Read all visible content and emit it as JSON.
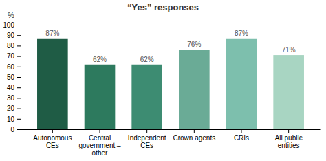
{
  "chart_data": {
    "type": "bar",
    "title": "“Yes” responses",
    "ylabel": "%",
    "categories": [
      "Autonomous\nCEs",
      "Central\ngovernment –\nother",
      "Independent\nCEs",
      "Crown agents",
      "CRIs",
      "All public\nentities"
    ],
    "values": [
      87,
      62,
      62,
      76,
      87,
      71
    ],
    "value_labels": [
      "87%",
      "62%",
      "62%",
      "76%",
      "87%",
      "71%"
    ],
    "data_labels": true,
    "colors": [
      "#1f5c45",
      "#2d7a5e",
      "#3d8c72",
      "#6aab96",
      "#7dbfad",
      "#a8d5c2"
    ],
    "ylim": [
      0,
      100
    ],
    "yticks": [
      0,
      10,
      20,
      30,
      40,
      50,
      60,
      70,
      80,
      90,
      100
    ],
    "grid": false
  }
}
